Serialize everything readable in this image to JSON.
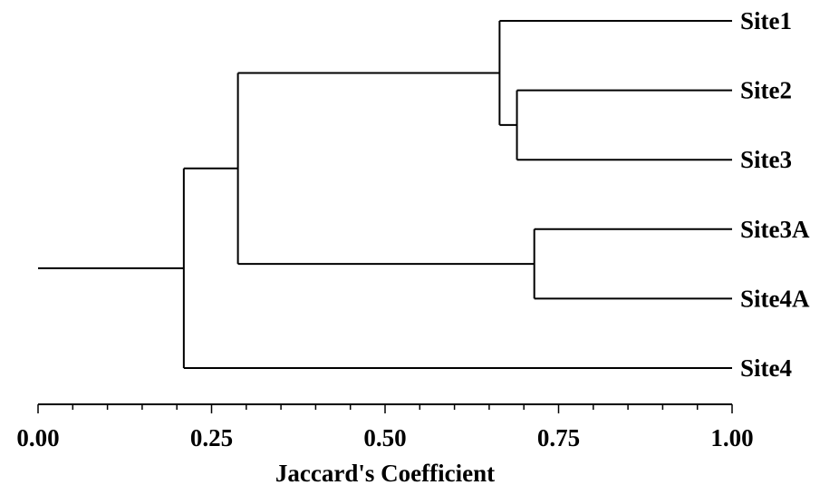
{
  "chart_data": {
    "type": "dendrogram",
    "orientation": "horizontal",
    "leaves": [
      "Site1",
      "Site2",
      "Site3",
      "Site3A",
      "Site4A",
      "Site4"
    ],
    "merges": [
      {
        "id": "n1",
        "children": [
          "Site2",
          "Site3"
        ],
        "x": 0.69
      },
      {
        "id": "n2",
        "children": [
          "Site1",
          "n1"
        ],
        "x": 0.665
      },
      {
        "id": "n3",
        "children": [
          "Site3A",
          "Site4A"
        ],
        "x": 0.715
      },
      {
        "id": "n4",
        "children": [
          "n2",
          "n3"
        ],
        "x": 0.288
      },
      {
        "id": "n5",
        "children": [
          "n4",
          "Site4"
        ],
        "x": 0.21
      }
    ],
    "root_x": 0.0,
    "leaf_x": 1.0,
    "xlabel": "Jaccard's Coefficient",
    "xlim": [
      0,
      1
    ],
    "major_ticks": [
      "0.00",
      "0.25",
      "0.50",
      "0.75",
      "1.00"
    ],
    "minor_tick_step": 0.05
  }
}
